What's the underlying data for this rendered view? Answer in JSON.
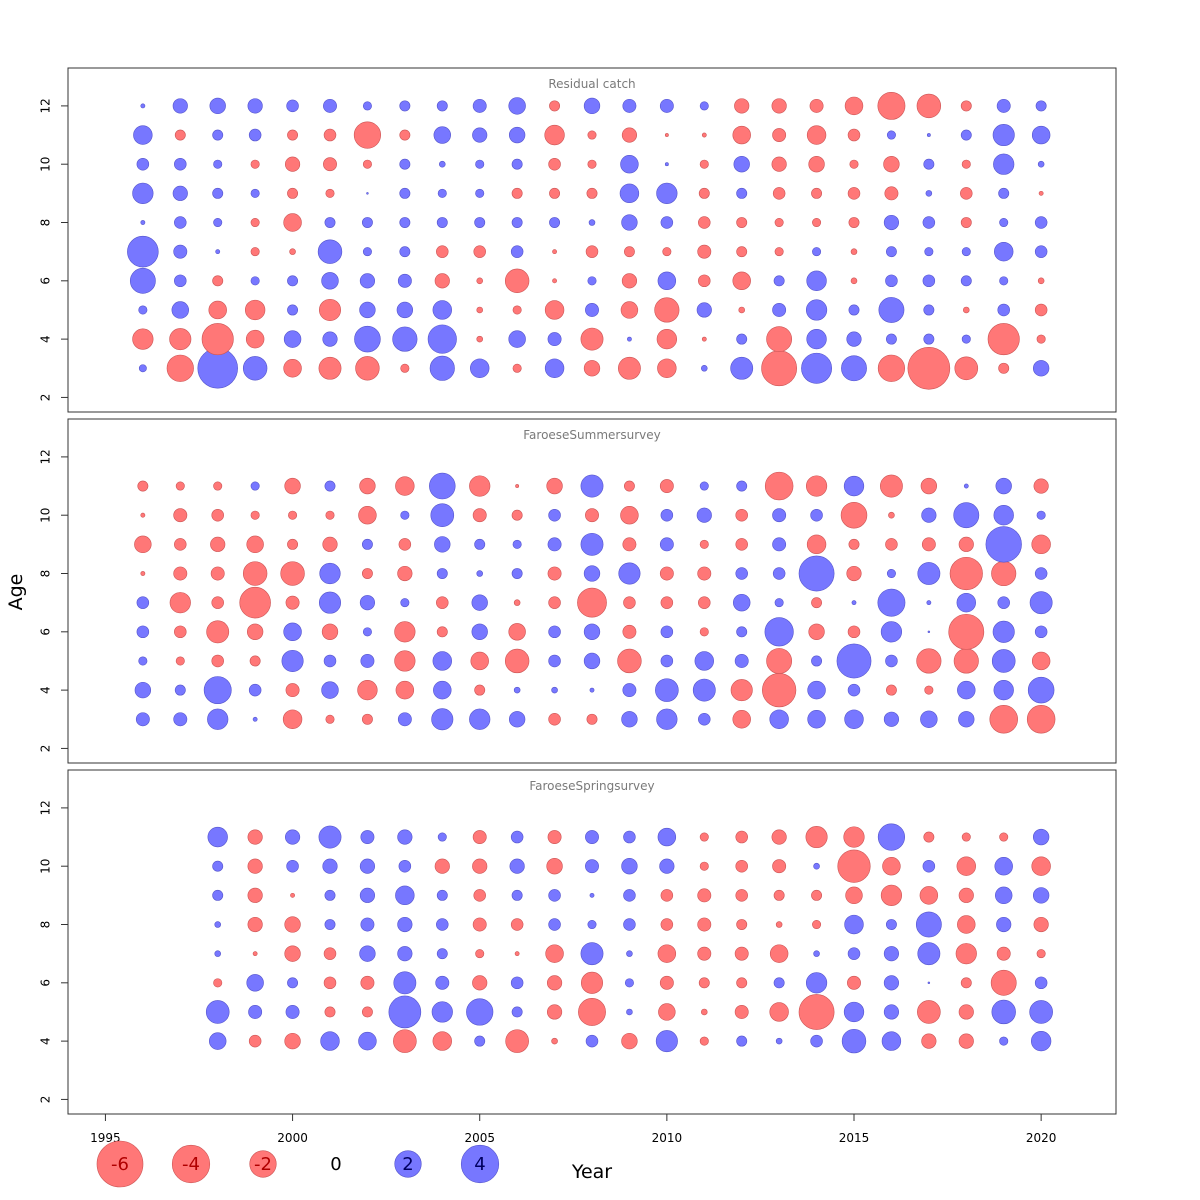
{
  "chart_data": {
    "type": "scatter",
    "subtype": "bubble",
    "xlabel": "Year",
    "ylabel": "Age",
    "x_ticks": [
      1995,
      2000,
      2005,
      2010,
      2015,
      2020
    ],
    "y_ticks": [
      2,
      4,
      6,
      8,
      10,
      12
    ],
    "xlim": [
      1994,
      2022
    ],
    "ylim": [
      1.5,
      13.3
    ],
    "size_scale_max_abs": 6.0,
    "colors": {
      "positive": "#7777ff",
      "negative": "#ff7777",
      "positive_stroke": "#5555cc",
      "negative_stroke": "#cc5555"
    },
    "legend": {
      "position": "bottom-left",
      "values": [
        -6,
        -4,
        -2,
        0,
        2,
        4
      ],
      "labels": [
        "-6",
        "-4",
        "-2",
        "0",
        "2",
        "4"
      ]
    },
    "panels": [
      {
        "title": "Residual catch",
        "years": [
          1996,
          1997,
          1998,
          1999,
          2000,
          2001,
          2002,
          2003,
          2004,
          2005,
          2006,
          2007,
          2008,
          2009,
          2010,
          2011,
          2012,
          2013,
          2014,
          2015,
          2016,
          2017,
          2018,
          2019,
          2020
        ],
        "ages": [
          3,
          4,
          5,
          6,
          7,
          8,
          9,
          10,
          11,
          12
        ],
        "residuals": [
          [
            0.15,
            -2.0,
            4.5,
            1.6,
            -0.9,
            -1.4,
            -1.6,
            -0.2,
            1.7,
            1.0,
            -0.2,
            1.0,
            -0.7,
            -1.4,
            -1.0,
            0.1,
            1.4,
            -3.5,
            2.6,
            1.8,
            -2.0,
            -5.0,
            -1.5,
            -0.3,
            0.7
          ],
          [
            -1.2,
            -1.3,
            -2.8,
            -0.9,
            0.8,
            0.6,
            1.9,
            1.7,
            2.3,
            -0.1,
            0.8,
            0.5,
            -1.4,
            0.05,
            -1.1,
            -0.05,
            0.3,
            -1.8,
            1.1,
            0.6,
            0.3,
            0.3,
            0.2,
            -2.8,
            -0.2
          ],
          [
            0.2,
            0.8,
            -0.9,
            -1.1,
            0.3,
            -1.3,
            0.7,
            0.7,
            1.0,
            -0.1,
            -0.2,
            -1.0,
            0.5,
            -0.8,
            -1.7,
            0.6,
            -0.1,
            0.5,
            1.2,
            0.3,
            1.8,
            0.3,
            -0.1,
            0.4,
            -0.4
          ],
          [
            1.8,
            0.4,
            -0.3,
            0.2,
            0.3,
            0.8,
            0.6,
            0.5,
            -0.6,
            -0.1,
            -1.6,
            -0.05,
            0.2,
            -0.6,
            0.9,
            -0.4,
            -0.9,
            0.3,
            1.1,
            -0.1,
            0.4,
            0.4,
            0.3,
            0.2,
            -0.1
          ],
          [
            2.7,
            0.5,
            0.05,
            -0.2,
            -0.1,
            1.6,
            0.2,
            0.3,
            -0.4,
            -0.4,
            0.4,
            -0.05,
            -0.4,
            -0.3,
            -0.2,
            -0.5,
            -0.3,
            -0.2,
            0.2,
            -0.1,
            0.3,
            0.2,
            0.2,
            1.0,
            0.4
          ],
          [
            0.05,
            0.4,
            0.2,
            -0.2,
            -0.9,
            0.3,
            0.3,
            0.3,
            0.3,
            0.3,
            0.3,
            0.3,
            0.1,
            0.7,
            0.4,
            -0.4,
            -0.3,
            -0.2,
            -0.2,
            -0.3,
            0.6,
            0.4,
            -0.3,
            0.2,
            0.4
          ],
          [
            1.2,
            0.6,
            0.3,
            0.2,
            -0.3,
            -0.2,
            0.01,
            0.3,
            0.2,
            0.2,
            -0.3,
            -0.3,
            -0.3,
            1.0,
            1.2,
            -0.3,
            0.3,
            -0.4,
            -0.3,
            -0.4,
            -0.5,
            0.1,
            -0.4,
            0.3,
            -0.05
          ],
          [
            0.4,
            0.4,
            0.2,
            -0.2,
            -0.6,
            -0.5,
            -0.2,
            0.3,
            0.1,
            0.2,
            0.3,
            -0.4,
            -0.2,
            0.9,
            0.03,
            -0.2,
            0.7,
            -0.6,
            -0.7,
            -0.2,
            -0.7,
            0.3,
            -0.2,
            1.2,
            0.1
          ],
          [
            1.0,
            -0.3,
            0.3,
            0.4,
            -0.3,
            -0.4,
            -2.0,
            -0.3,
            0.8,
            0.6,
            0.7,
            -1.1,
            -0.2,
            -0.6,
            -0.03,
            -0.05,
            -0.9,
            -0.5,
            -1.0,
            -0.4,
            0.2,
            0.03,
            0.3,
            1.3,
            0.9
          ],
          [
            0.05,
            0.6,
            0.7,
            0.6,
            0.4,
            0.5,
            0.2,
            0.3,
            0.3,
            0.5,
            0.8,
            -0.3,
            0.7,
            0.5,
            0.5,
            0.2,
            -0.6,
            -0.6,
            -0.5,
            -0.9,
            -2.1,
            -1.6,
            -0.3,
            0.5,
            0.3
          ]
        ]
      },
      {
        "title": "FaroeseSummersurvey",
        "years": [
          1996,
          1997,
          1998,
          1999,
          2000,
          2001,
          2002,
          2003,
          2004,
          2005,
          2006,
          2007,
          2008,
          2009,
          2010,
          2011,
          2012,
          2013,
          2014,
          2015,
          2016,
          2017,
          2018,
          2019,
          2020
        ],
        "ages": [
          3,
          4,
          5,
          6,
          7,
          8,
          9,
          10,
          11
        ],
        "residuals": [
          [
            0.5,
            0.5,
            1.2,
            0.05,
            -1.0,
            -0.2,
            -0.3,
            0.5,
            1.3,
            1.2,
            0.7,
            -0.4,
            -0.3,
            0.7,
            1.2,
            0.4,
            -0.9,
            1.0,
            0.9,
            1.0,
            0.6,
            0.8,
            0.7,
            -2.2,
            -2.2
          ],
          [
            0.7,
            0.3,
            2.1,
            0.4,
            -0.5,
            0.8,
            -1.1,
            -0.9,
            0.9,
            -0.3,
            0.1,
            0.1,
            0.05,
            0.5,
            1.5,
            1.4,
            -1.3,
            -3.2,
            0.9,
            0.4,
            -0.3,
            -0.2,
            0.9,
            1.1,
            1.9
          ],
          [
            0.2,
            -0.2,
            -0.4,
            -0.3,
            1.3,
            0.4,
            0.5,
            -1.2,
            1.0,
            -0.9,
            -1.6,
            0.4,
            0.7,
            -1.6,
            0.4,
            1.0,
            0.5,
            -1.8,
            0.3,
            3.3,
            0.4,
            -1.7,
            -1.7,
            1.5,
            -0.9
          ],
          [
            0.4,
            -0.4,
            -1.4,
            -0.7,
            0.9,
            -0.7,
            0.2,
            -1.2,
            -0.3,
            0.7,
            -0.8,
            0.4,
            0.7,
            -0.5,
            0.4,
            -0.2,
            0.3,
            2.3,
            -0.7,
            -0.4,
            1.2,
            0.01,
            -3.5,
            1.3,
            0.4
          ],
          [
            0.4,
            -1.2,
            -0.4,
            -2.7,
            -0.5,
            1.3,
            0.6,
            0.2,
            -0.4,
            0.7,
            -0.1,
            -0.4,
            -2.4,
            -0.4,
            -0.4,
            -0.4,
            0.8,
            0.2,
            -0.3,
            0.05,
            2.1,
            0.05,
            1.0,
            0.4,
            1.4
          ],
          [
            -0.05,
            -0.5,
            -0.5,
            -1.6,
            -1.6,
            1.2,
            -0.3,
            -0.6,
            0.3,
            0.1,
            0.3,
            -0.5,
            0.7,
            1.3,
            -0.5,
            -0.5,
            0.4,
            0.4,
            3.5,
            -0.6,
            0.2,
            1.4,
            -3.0,
            -1.7,
            0.4
          ],
          [
            -0.8,
            -0.4,
            -0.6,
            -0.8,
            -0.3,
            -0.6,
            0.3,
            -0.4,
            0.7,
            0.3,
            0.2,
            0.5,
            1.4,
            -0.5,
            0.5,
            -0.2,
            -0.4,
            0.5,
            -1.0,
            -0.3,
            -0.4,
            -0.5,
            -0.6,
            3.6,
            -1.0
          ],
          [
            -0.05,
            -0.5,
            -0.4,
            -0.2,
            -0.2,
            -0.2,
            -0.9,
            0.2,
            1.5,
            -0.5,
            -0.3,
            0.4,
            -0.5,
            -0.9,
            0.4,
            0.6,
            -0.4,
            0.5,
            0.4,
            -1.9,
            -0.1,
            0.6,
            1.8,
            1.1,
            0.2
          ],
          [
            -0.3,
            -0.2,
            -0.2,
            0.2,
            -0.7,
            0.3,
            -0.7,
            -1.0,
            1.9,
            -1.2,
            -0.03,
            -0.7,
            1.4,
            -0.3,
            -0.5,
            0.2,
            0.3,
            -2.2,
            -1.2,
            1.1,
            -1.4,
            -0.7,
            0.05,
            0.7,
            -0.6
          ]
        ]
      },
      {
        "title": "FaroeseSpringsurvey",
        "years": [
          1998,
          1999,
          2000,
          2001,
          2002,
          2003,
          2004,
          2005,
          2006,
          2007,
          2008,
          2009,
          2010,
          2011,
          2012,
          2013,
          2014,
          2015,
          2016,
          2017,
          2018,
          2019,
          2020
        ],
        "ages": [
          4,
          5,
          6,
          7,
          8,
          9,
          10,
          11
        ],
        "residuals": [
          [
            0.8,
            -0.4,
            -0.7,
            1.0,
            0.9,
            -1.5,
            -1.0,
            0.3,
            -1.5,
            -0.1,
            0.4,
            -0.7,
            1.3,
            -0.2,
            0.3,
            0.1,
            0.4,
            1.6,
            1.0,
            -0.6,
            -0.6,
            0.2,
            1.1
          ],
          [
            1.5,
            0.5,
            0.5,
            -0.3,
            -0.3,
            2.9,
            1.2,
            2.0,
            0.3,
            -0.6,
            -2.1,
            0.1,
            -0.8,
            -0.1,
            -0.5,
            -1.0,
            -3.5,
            1.1,
            0.6,
            -1.5,
            -0.6,
            1.6,
            1.5
          ],
          [
            -0.2,
            0.8,
            0.3,
            -0.4,
            -0.5,
            1.4,
            0.5,
            -0.6,
            0.4,
            -0.6,
            -1.3,
            0.2,
            -0.5,
            -0.3,
            -0.3,
            0.3,
            1.2,
            -0.5,
            0.6,
            0.01,
            -0.3,
            -1.8,
            0.4
          ],
          [
            0.1,
            -0.05,
            -0.7,
            -0.4,
            0.7,
            0.6,
            0.3,
            -0.2,
            -0.05,
            -0.9,
            1.4,
            0.1,
            -0.9,
            -0.5,
            -0.5,
            -0.9,
            0.1,
            0.4,
            0.6,
            1.4,
            -1.2,
            -0.5,
            -0.2
          ],
          [
            0.1,
            -0.6,
            -0.7,
            0.3,
            0.5,
            0.6,
            0.4,
            -0.5,
            -0.4,
            0.4,
            0.2,
            0.4,
            -0.4,
            -0.5,
            -0.3,
            -0.1,
            -0.2,
            1.0,
            0.3,
            1.8,
            -0.9,
            0.6,
            -0.6
          ],
          [
            0.3,
            -0.6,
            -0.05,
            0.3,
            0.6,
            1.0,
            0.3,
            -0.4,
            0.3,
            0.4,
            0.05,
            0.4,
            -0.4,
            -0.5,
            -0.4,
            -0.3,
            -0.3,
            -0.8,
            -1.2,
            -0.9,
            -0.6,
            0.8,
            0.7
          ],
          [
            0.3,
            -0.6,
            0.4,
            0.6,
            0.6,
            0.4,
            -0.6,
            -0.6,
            0.6,
            -0.7,
            0.5,
            0.7,
            0.6,
            -0.2,
            -0.4,
            -0.5,
            0.1,
            -3.0,
            -0.9,
            0.4,
            -1.0,
            0.9,
            -1.0
          ],
          [
            1.1,
            -0.6,
            0.6,
            1.4,
            0.5,
            0.6,
            0.2,
            -0.5,
            0.4,
            -0.5,
            0.5,
            0.4,
            0.9,
            -0.2,
            -0.4,
            -0.6,
            -1.3,
            -1.2,
            2.0,
            -0.3,
            -0.2,
            -0.2,
            0.7
          ]
        ]
      }
    ]
  }
}
